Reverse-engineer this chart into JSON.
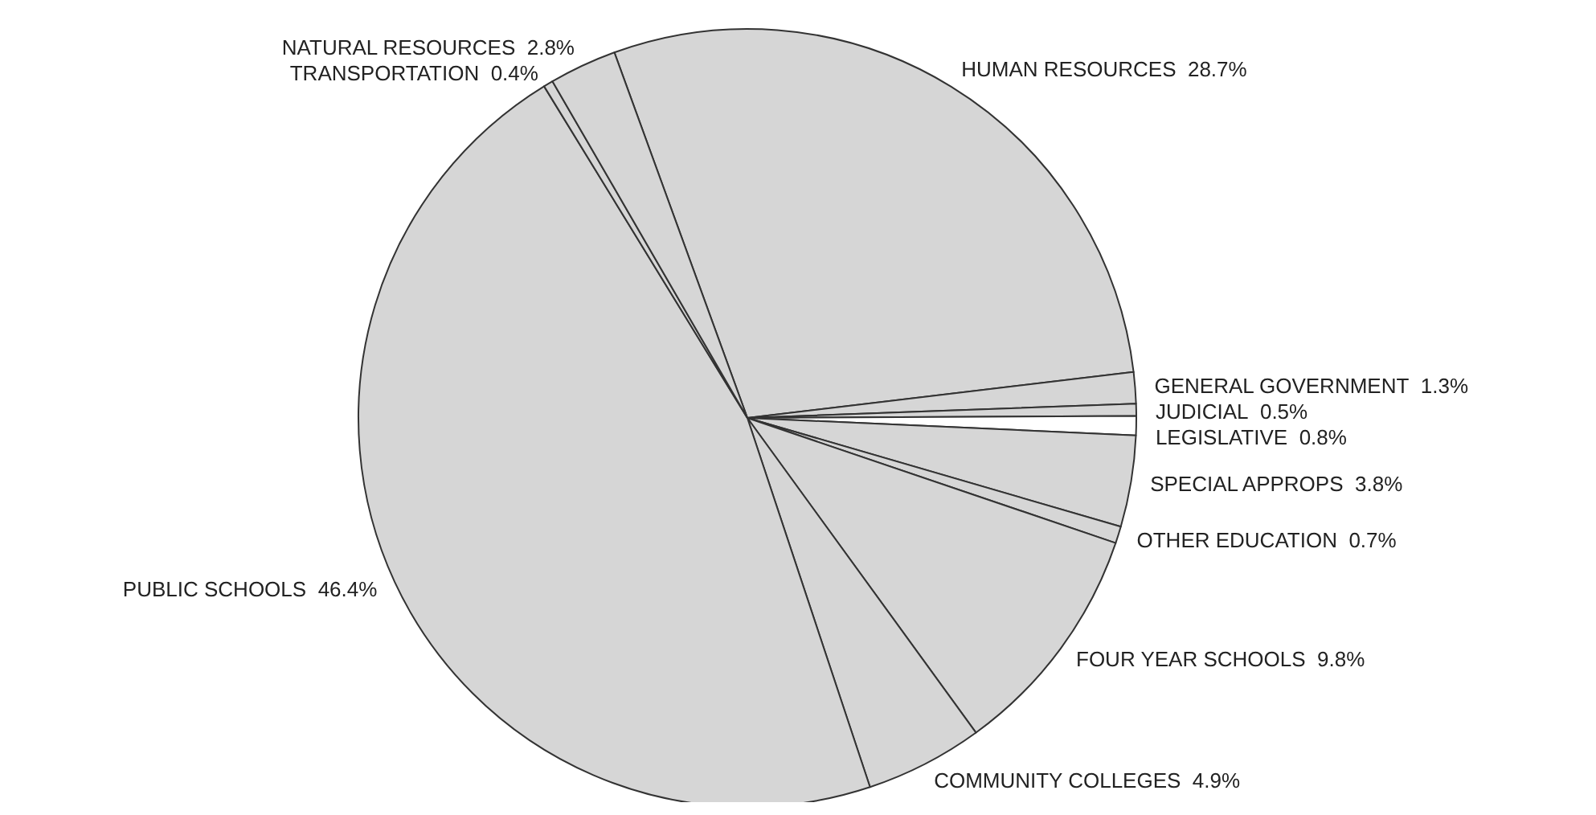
{
  "chart_data": {
    "type": "pie",
    "categories": [
      "HUMAN RESOURCES",
      "GENERAL GOVERNMENT",
      "JUDICIAL",
      "LEGISLATIVE",
      "SPECIAL APPROPS",
      "OTHER EDUCATION",
      "FOUR YEAR SCHOOLS",
      "COMMUNITY COLLEGES",
      "PUBLIC SCHOOLS",
      "TRANSPORTATION",
      "NATURAL RESOURCES"
    ],
    "values": [
      28.7,
      1.3,
      0.5,
      0.8,
      3.8,
      0.7,
      9.8,
      4.9,
      46.4,
      0.4,
      2.8
    ],
    "value_labels": [
      "28.7%",
      "1.3%",
      "0.5%",
      "0.8%",
      "3.8%",
      "0.7%",
      "9.8%",
      "4.9%",
      "46.4%",
      "0.4%",
      "2.8%"
    ],
    "colors": [
      "#d6d6d6",
      "#d6d6d6",
      "#d6d6d6",
      "#ffffff",
      "#d6d6d6",
      "#d6d6d6",
      "#d6d6d6",
      "#d6d6d6",
      "#d6d6d6",
      "#d6d6d6",
      "#d6d6d6"
    ]
  }
}
